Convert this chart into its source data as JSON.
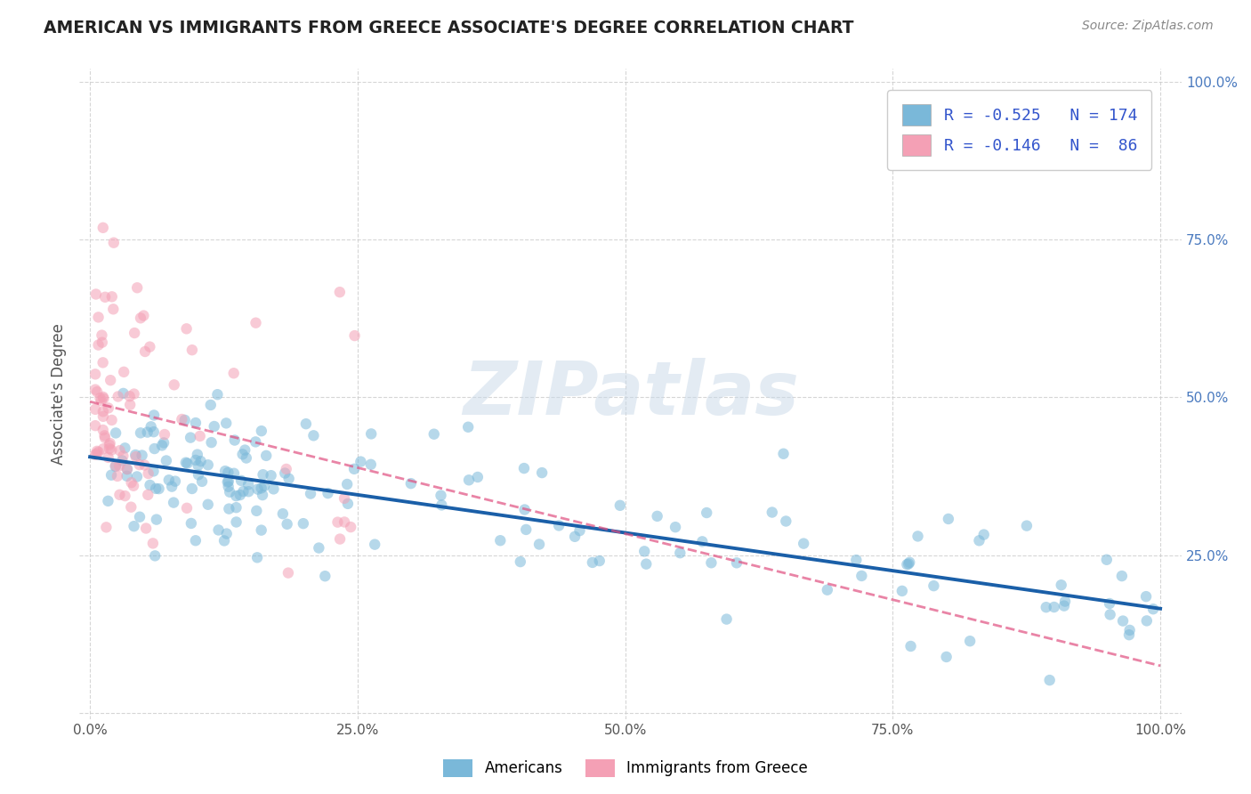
{
  "title": "AMERICAN VS IMMIGRANTS FROM GREECE ASSOCIATE'S DEGREE CORRELATION CHART",
  "source_text": "Source: ZipAtlas.com",
  "ylabel": "Associate's Degree",
  "watermark": "ZIPatlas",
  "R_americans": -0.525,
  "N_americans": 174,
  "R_greece": -0.146,
  "N_greece": 86,
  "legend_label_americans": "Americans",
  "legend_label_greece": "Immigrants from Greece",
  "color_americans": "#7ab8d9",
  "color_greece": "#f4a0b5",
  "trend_color_americans": "#1a5fa8",
  "trend_color_greece": "#e05080",
  "background_color": "#ffffff",
  "grid_color": "#cccccc",
  "title_color": "#222222",
  "source_color": "#888888",
  "legend_R_color": "#3355cc",
  "scatter_alpha": 0.55,
  "scatter_size": 80
}
